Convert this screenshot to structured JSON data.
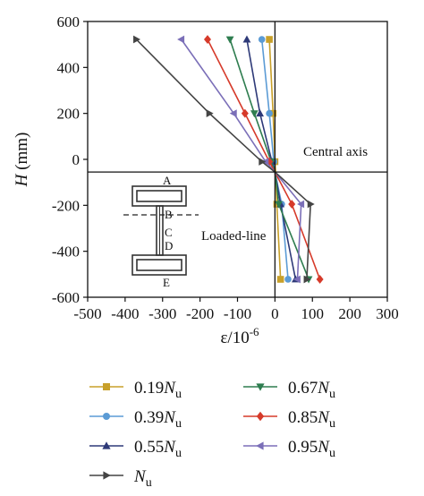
{
  "chart_data": {
    "type": "line",
    "xlabel": "ε/10",
    "xlabel_sup": "-6",
    "ylabel": "H",
    "ylabel_unit": " (mm)",
    "xlim": [
      -500,
      300
    ],
    "ylim": [
      -600,
      600
    ],
    "xticks": [
      -500,
      -400,
      -300,
      -200,
      -100,
      0,
      100,
      200,
      300
    ],
    "yticks": [
      600,
      400,
      200,
      0,
      -200,
      -400,
      -600
    ],
    "grid": false,
    "legend_position": "bottom",
    "central_axis_y": -55,
    "annotations": {
      "central_axis": "Central axis",
      "loaded_line": "Loaded-line"
    },
    "section_labels": [
      "A",
      "B",
      "C",
      "D",
      "E"
    ],
    "series": [
      {
        "label": "0.19",
        "subscript": "u",
        "color": "#c8a02a",
        "marker": "square",
        "points": [
          [
            -15,
            522
          ],
          [
            -5,
            200
          ],
          [
            0,
            -10
          ],
          [
            2,
            -55
          ],
          [
            5,
            -195
          ],
          [
            15,
            -522
          ]
        ]
      },
      {
        "label": "0.39",
        "subscript": "u",
        "color": "#5b9bd5",
        "marker": "circle",
        "points": [
          [
            -35,
            522
          ],
          [
            -15,
            200
          ],
          [
            -3,
            -10
          ],
          [
            0,
            -55
          ],
          [
            18,
            -195
          ],
          [
            35,
            -522
          ]
        ]
      },
      {
        "label": "0.55",
        "subscript": "u",
        "color": "#2e3a78",
        "marker": "triangle-up",
        "points": [
          [
            -75,
            522
          ],
          [
            -40,
            200
          ],
          [
            -8,
            -10
          ],
          [
            0,
            -55
          ],
          [
            15,
            -195
          ],
          [
            55,
            -522
          ]
        ]
      },
      {
        "label": "0.67",
        "subscript": "u",
        "color": "#2e7d4f",
        "marker": "triangle-down",
        "points": [
          [
            -120,
            522
          ],
          [
            -55,
            200
          ],
          [
            -10,
            -10
          ],
          [
            0,
            -55
          ],
          [
            10,
            -195
          ],
          [
            90,
            -522
          ]
        ]
      },
      {
        "label": "0.85",
        "subscript": "u",
        "color": "#d63a2a",
        "marker": "diamond",
        "points": [
          [
            -180,
            522
          ],
          [
            -80,
            200
          ],
          [
            -15,
            -10
          ],
          [
            0,
            -55
          ],
          [
            45,
            -195
          ],
          [
            120,
            -522
          ]
        ]
      },
      {
        "label": "0.95",
        "subscript": "u",
        "color": "#7b6fb8",
        "marker": "triangle-left",
        "points": [
          [
            -250,
            522
          ],
          [
            -110,
            200
          ],
          [
            -25,
            -10
          ],
          [
            0,
            -55
          ],
          [
            70,
            -195
          ],
          [
            60,
            -522
          ]
        ]
      },
      {
        "label": "",
        "subscript": "u",
        "color": "#444444",
        "marker": "triangle-right",
        "points": [
          [
            -370,
            522
          ],
          [
            -175,
            200
          ],
          [
            -35,
            -10
          ],
          [
            0,
            -55
          ],
          [
            95,
            -195
          ],
          [
            85,
            -522
          ]
        ]
      }
    ]
  }
}
